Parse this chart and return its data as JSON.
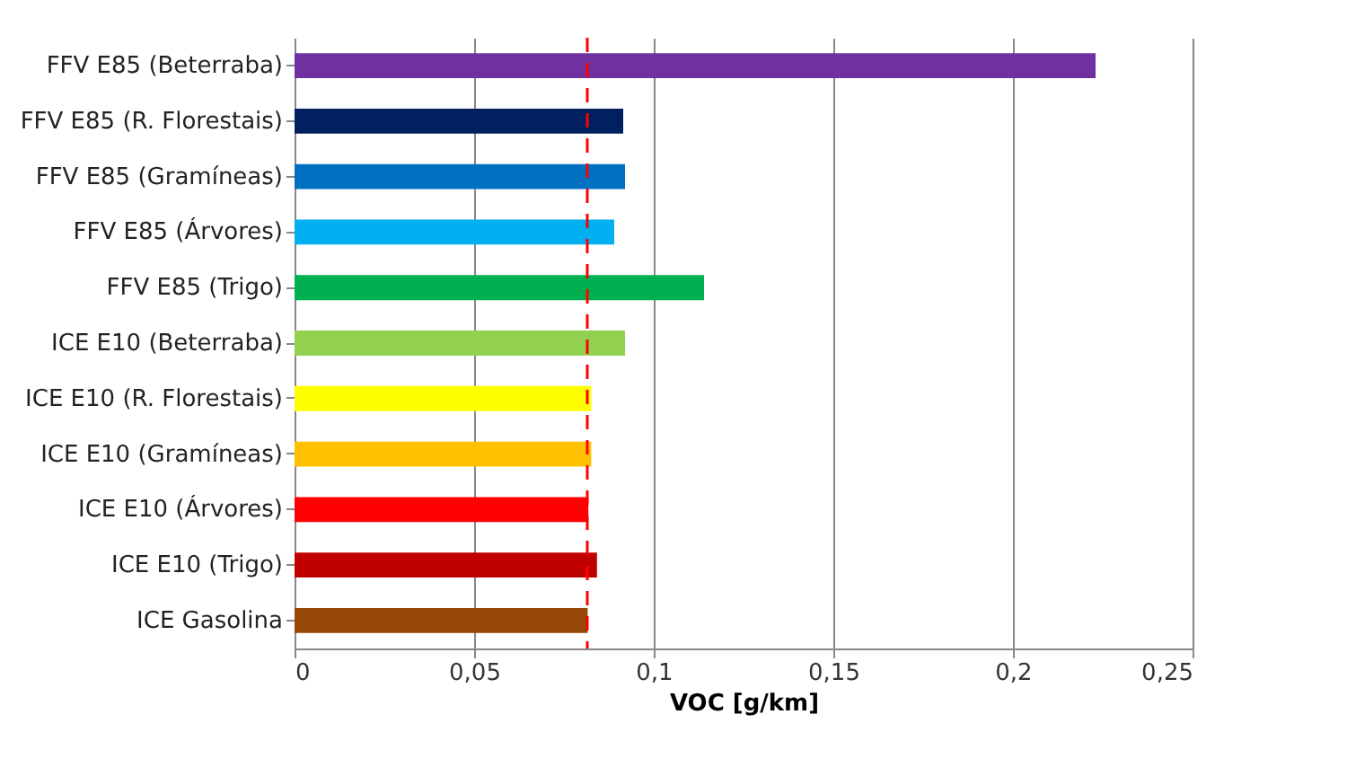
{
  "chart_data": {
    "type": "bar",
    "orientation": "horizontal",
    "xlabel": "VOC [g/km]",
    "categories": [
      "FFV E85 (Beterraba)",
      "FFV E85 (R. Florestais)",
      "FFV E85 (Gramíneas)",
      "FFV E85 (Árvores)",
      "FFV E85 (Trigo)",
      "ICE E10 (Beterraba)",
      "ICE E10 (R. Florestais)",
      "ICE E10 (Gramíneas)",
      "ICE E10 (Árvores)",
      "ICE E10 (Trigo)",
      "ICE Gasolina"
    ],
    "values": [
      0.223,
      0.0915,
      0.092,
      0.089,
      0.114,
      0.092,
      0.0826,
      0.0826,
      0.0818,
      0.0842,
      0.0816
    ],
    "colors": [
      "#7030a0",
      "#002060",
      "#0070c0",
      "#00b0f0",
      "#00b050",
      "#92d050",
      "#ffff00",
      "#ffc000",
      "#ff0000",
      "#c00000",
      "#974706"
    ],
    "xlim": [
      0,
      0.25
    ],
    "xticks": [
      {
        "value": 0,
        "label": "0"
      },
      {
        "value": 0.05,
        "label": "0,05"
      },
      {
        "value": 0.1,
        "label": "0,1"
      },
      {
        "value": 0.15,
        "label": "0,15"
      },
      {
        "value": 0.2,
        "label": "0,2"
      },
      {
        "value": 0.25,
        "label": "0,25"
      }
    ],
    "grid": "x",
    "ref_lines": [
      {
        "axis": "x",
        "value": 0.0815,
        "color": "#ff0000",
        "line_style": "dashed"
      }
    ]
  }
}
